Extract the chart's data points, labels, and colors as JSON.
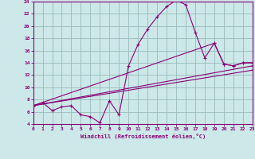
{
  "xlabel": "Windchill (Refroidissement éolien,°C)",
  "bg_color": "#cce8e8",
  "grid_color": "#99bbbb",
  "line_color": "#880077",
  "x_min": 0,
  "x_max": 23,
  "y_min": 4,
  "y_max": 24,
  "yticks": [
    4,
    6,
    8,
    10,
    12,
    14,
    16,
    18,
    20,
    22,
    24
  ],
  "xticks": [
    0,
    1,
    2,
    3,
    4,
    5,
    6,
    7,
    8,
    9,
    10,
    11,
    12,
    13,
    14,
    15,
    16,
    17,
    18,
    19,
    20,
    21,
    22,
    23
  ],
  "curve1_x": [
    0,
    1,
    2,
    3,
    4,
    5,
    6,
    7,
    8,
    9,
    10,
    11,
    12,
    13,
    14,
    15,
    16,
    17,
    18,
    19,
    20,
    21,
    22,
    23
  ],
  "curve1_y": [
    7.0,
    7.5,
    6.2,
    6.8,
    7.0,
    5.5,
    5.2,
    4.2,
    7.8,
    5.5,
    13.5,
    17.0,
    19.5,
    21.5,
    23.2,
    24.2,
    23.5,
    19.0,
    14.8,
    17.2,
    13.8,
    13.5,
    14.0,
    14.0
  ],
  "curve2_x": [
    0,
    19,
    20,
    21,
    22,
    23
  ],
  "curve2_y": [
    7.0,
    17.2,
    13.8,
    13.5,
    14.0,
    14.0
  ],
  "curve3_x": [
    0,
    23
  ],
  "curve3_y": [
    7.0,
    13.5
  ],
  "curve4_x": [
    0,
    23
  ],
  "curve4_y": [
    7.0,
    12.8
  ]
}
